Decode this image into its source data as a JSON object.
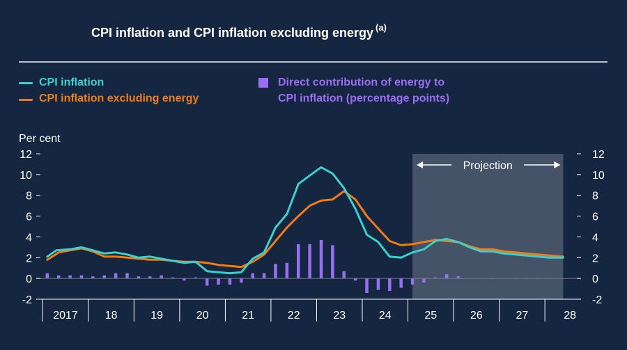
{
  "header": {
    "title": "CPI inflation and CPI inflation excluding energy",
    "title_note": "(a)"
  },
  "legend": {
    "cpi": "CPI inflation",
    "cpi_ex_energy": "CPI inflation excluding energy",
    "energy_line1": "Direct contribution of energy to",
    "energy_line2": "CPI inflation (percentage points)"
  },
  "colors": {
    "background": "#152640",
    "cpi": "#3cd0cc",
    "cpi_ex_energy": "#f07d14",
    "energy": "#9b6cf5",
    "projection_shade": "#4e5c70",
    "axis_text": "#ffffff"
  },
  "chart_data": {
    "type": "line",
    "ylabel": "Per cent",
    "ylim": [
      -2,
      12
    ],
    "yticks": [
      -2,
      0,
      2,
      4,
      6,
      8,
      10,
      12
    ],
    "xlim": [
      2016.45,
      2028.2
    ],
    "year_labels": [
      {
        "label": "2017",
        "year": 2017
      },
      {
        "label": "18",
        "year": 2018
      },
      {
        "label": "19",
        "year": 2019
      },
      {
        "label": "20",
        "year": 2020
      },
      {
        "label": "21",
        "year": 2021
      },
      {
        "label": "22",
        "year": 2022
      },
      {
        "label": "23",
        "year": 2023
      },
      {
        "label": "24",
        "year": 2024
      },
      {
        "label": "25",
        "year": 2025
      },
      {
        "label": "26",
        "year": 2026
      },
      {
        "label": "27",
        "year": 2027
      },
      {
        "label": "28",
        "year": 2028
      }
    ],
    "projection": {
      "label": "Projection",
      "start": 2024.6,
      "end": 2027.9
    },
    "grid": false,
    "series": [
      {
        "name": "CPI inflation",
        "kind": "line",
        "x": [
          2016.6,
          2016.8,
          2017.1,
          2017.35,
          2017.6,
          2017.85,
          2018.1,
          2018.35,
          2018.6,
          2018.85,
          2019.1,
          2019.35,
          2019.6,
          2019.85,
          2020.1,
          2020.35,
          2020.6,
          2020.85,
          2021.1,
          2021.35,
          2021.6,
          2021.85,
          2022.1,
          2022.35,
          2022.6,
          2022.85,
          2023.1,
          2023.35,
          2023.6,
          2023.85,
          2024.1,
          2024.35,
          2024.6,
          2024.85,
          2025.1,
          2025.35,
          2025.6,
          2025.85,
          2026.1,
          2026.35,
          2026.6,
          2026.85,
          2027.1,
          2027.35,
          2027.6,
          2027.9
        ],
        "values": [
          2.1,
          2.7,
          2.8,
          3.0,
          2.7,
          2.4,
          2.5,
          2.3,
          2.0,
          2.1,
          1.9,
          1.7,
          1.5,
          1.6,
          0.7,
          0.6,
          0.5,
          0.6,
          1.9,
          2.5,
          4.9,
          6.2,
          9.1,
          9.9,
          10.7,
          10.1,
          8.7,
          6.7,
          4.2,
          3.5,
          2.1,
          2.0,
          2.5,
          2.8,
          3.6,
          3.8,
          3.5,
          3.0,
          2.6,
          2.6,
          2.4,
          2.3,
          2.2,
          2.1,
          2.0,
          2.0
        ]
      },
      {
        "name": "CPI inflation excluding energy",
        "kind": "line",
        "x": [
          2016.6,
          2016.85,
          2017.1,
          2017.35,
          2017.6,
          2017.85,
          2018.1,
          2018.35,
          2018.6,
          2018.85,
          2019.1,
          2019.35,
          2019.6,
          2019.85,
          2020.1,
          2020.35,
          2020.6,
          2020.85,
          2021.1,
          2021.35,
          2021.6,
          2021.85,
          2022.1,
          2022.35,
          2022.6,
          2022.85,
          2023.1,
          2023.35,
          2023.6,
          2023.85,
          2024.1,
          2024.35,
          2024.6,
          2024.85,
          2025.1,
          2025.35,
          2025.6,
          2025.85,
          2026.1,
          2026.35,
          2026.6,
          2026.85,
          2027.1,
          2027.35,
          2027.6,
          2027.9
        ],
        "values": [
          1.8,
          2.5,
          2.7,
          2.9,
          2.6,
          2.1,
          2.1,
          2.0,
          1.9,
          1.8,
          1.8,
          1.7,
          1.6,
          1.6,
          1.5,
          1.3,
          1.2,
          1.1,
          1.6,
          2.3,
          3.6,
          4.9,
          6.0,
          7.0,
          7.5,
          7.6,
          8.4,
          7.6,
          6.0,
          4.8,
          3.6,
          3.2,
          3.3,
          3.5,
          3.7,
          3.6,
          3.5,
          3.1,
          2.8,
          2.8,
          2.6,
          2.5,
          2.4,
          2.3,
          2.2,
          2.1
        ]
      },
      {
        "name": "Direct contribution of energy to CPI inflation (percentage points)",
        "kind": "bar",
        "x": [
          2016.6,
          2016.85,
          2017.1,
          2017.35,
          2017.6,
          2017.85,
          2018.1,
          2018.35,
          2018.6,
          2018.85,
          2019.1,
          2019.35,
          2019.6,
          2019.85,
          2020.1,
          2020.35,
          2020.6,
          2020.85,
          2021.1,
          2021.35,
          2021.6,
          2021.85,
          2022.1,
          2022.35,
          2022.6,
          2022.85,
          2023.1,
          2023.35,
          2023.6,
          2023.85,
          2024.1,
          2024.35,
          2024.6,
          2024.85,
          2025.1,
          2025.35,
          2025.6,
          2025.85,
          2026.1,
          2026.35,
          2026.6,
          2026.85,
          2027.1,
          2027.35,
          2027.6,
          2027.9
        ],
        "values": [
          0.5,
          0.3,
          0.3,
          0.3,
          0.2,
          0.3,
          0.5,
          0.5,
          0.2,
          0.2,
          0.3,
          0.1,
          -0.2,
          0.1,
          -0.7,
          -0.6,
          -0.6,
          -0.4,
          0.5,
          0.5,
          1.4,
          1.5,
          3.3,
          3.3,
          3.7,
          3.2,
          0.7,
          -0.2,
          -1.4,
          -1.1,
          -1.2,
          -0.9,
          -0.6,
          -0.4,
          0.1,
          0.4,
          0.2,
          0.05,
          0.0,
          0.05,
          0.0,
          0.0,
          0.0,
          0.0,
          0.0,
          0.0
        ]
      }
    ]
  }
}
